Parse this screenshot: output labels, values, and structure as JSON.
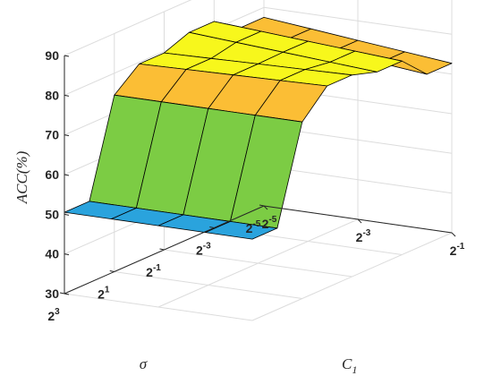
{
  "chart_data": {
    "type": "surface",
    "title": "",
    "zlabel": "ACC(%)",
    "xlabel": "C",
    "xlabel_subscript": "1",
    "ylabel": "σ",
    "zlim": [
      30,
      90
    ],
    "zticks": [
      "30",
      "40",
      "50",
      "60",
      "70",
      "80",
      "90"
    ],
    "x_ticks": [
      {
        "base": "2",
        "exp": "-5"
      },
      {
        "base": "2",
        "exp": "-3"
      },
      {
        "base": "2",
        "exp": "-1"
      }
    ],
    "y_ticks": [
      {
        "base": "2",
        "exp": "3"
      },
      {
        "base": "2",
        "exp": "1"
      },
      {
        "base": "2",
        "exp": "-1"
      },
      {
        "base": "2",
        "exp": "-3"
      },
      {
        "base": "2",
        "exp": "-5"
      }
    ],
    "c1_exponents": [
      -5,
      -4,
      -3,
      -2,
      -1
    ],
    "sigma_exponents": [
      3,
      2,
      1,
      0,
      -1,
      -2,
      -3,
      -4,
      -5
    ],
    "grid": true,
    "colors": {
      "low": "#3e2f9e",
      "mid_low": "#2aa3dd",
      "mid": "#7ccc44",
      "mid_high": "#fbbe35",
      "high": "#f7f71c"
    }
  }
}
